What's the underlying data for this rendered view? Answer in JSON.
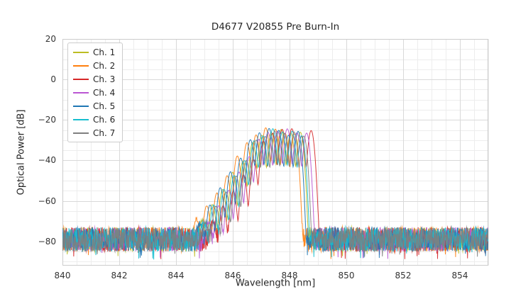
{
  "chart_data": {
    "type": "line",
    "title": "D4677 V20855 Pre Burn-In",
    "xlabel": "Wavelength [nm]",
    "ylabel": "Optical Power [dB]",
    "xlim": [
      840,
      855
    ],
    "ylim": [
      -92,
      20
    ],
    "xticks": [
      "840",
      "842",
      "844",
      "846",
      "848",
      "850",
      "852",
      "854"
    ],
    "xtick_values": [
      840,
      842,
      844,
      846,
      848,
      850,
      852,
      854
    ],
    "yticks": [
      "20",
      "0",
      "−20",
      "−40",
      "−60",
      "−80"
    ],
    "ytick_values": [
      20,
      0,
      -20,
      -40,
      -60,
      -80
    ],
    "grid": {
      "on": true,
      "minor_nm": 0.5,
      "major_nm": 2,
      "minor_db": 5,
      "major_db": 20
    },
    "legend_position": "upper left",
    "noise": {
      "floor_db": -79,
      "amplitude_db": 6
    },
    "spectrum_lobes": {
      "centers_nm": [
        845.02,
        845.38,
        845.74,
        846.1,
        846.46,
        846.8,
        847.12,
        847.46,
        847.8,
        848.14,
        848.48
      ],
      "peaks_db": [
        -71,
        -63,
        -55,
        -47,
        -39,
        -31,
        -27,
        -25,
        -25.5,
        -27,
        -26.5
      ],
      "lobe_sigma_nm": 0.08
    },
    "series": [
      {
        "name": "Ch. 1",
        "color": "#bcbd22",
        "offset_nm": -0.1
      },
      {
        "name": "Ch. 2",
        "color": "#ff7f0e",
        "offset_nm": -0.3
      },
      {
        "name": "Ch. 3",
        "color": "#d62728",
        "offset_nm": 0.28
      },
      {
        "name": "Ch. 4",
        "color": "#ba55d3",
        "offset_nm": 0.12
      },
      {
        "name": "Ch. 5",
        "color": "#1f77b4",
        "offset_nm": -0.18
      },
      {
        "name": "Ch. 6",
        "color": "#17becf",
        "offset_nm": -0.05
      },
      {
        "name": "Ch. 7",
        "color": "#7f7f7f",
        "offset_nm": 0.02
      }
    ]
  }
}
